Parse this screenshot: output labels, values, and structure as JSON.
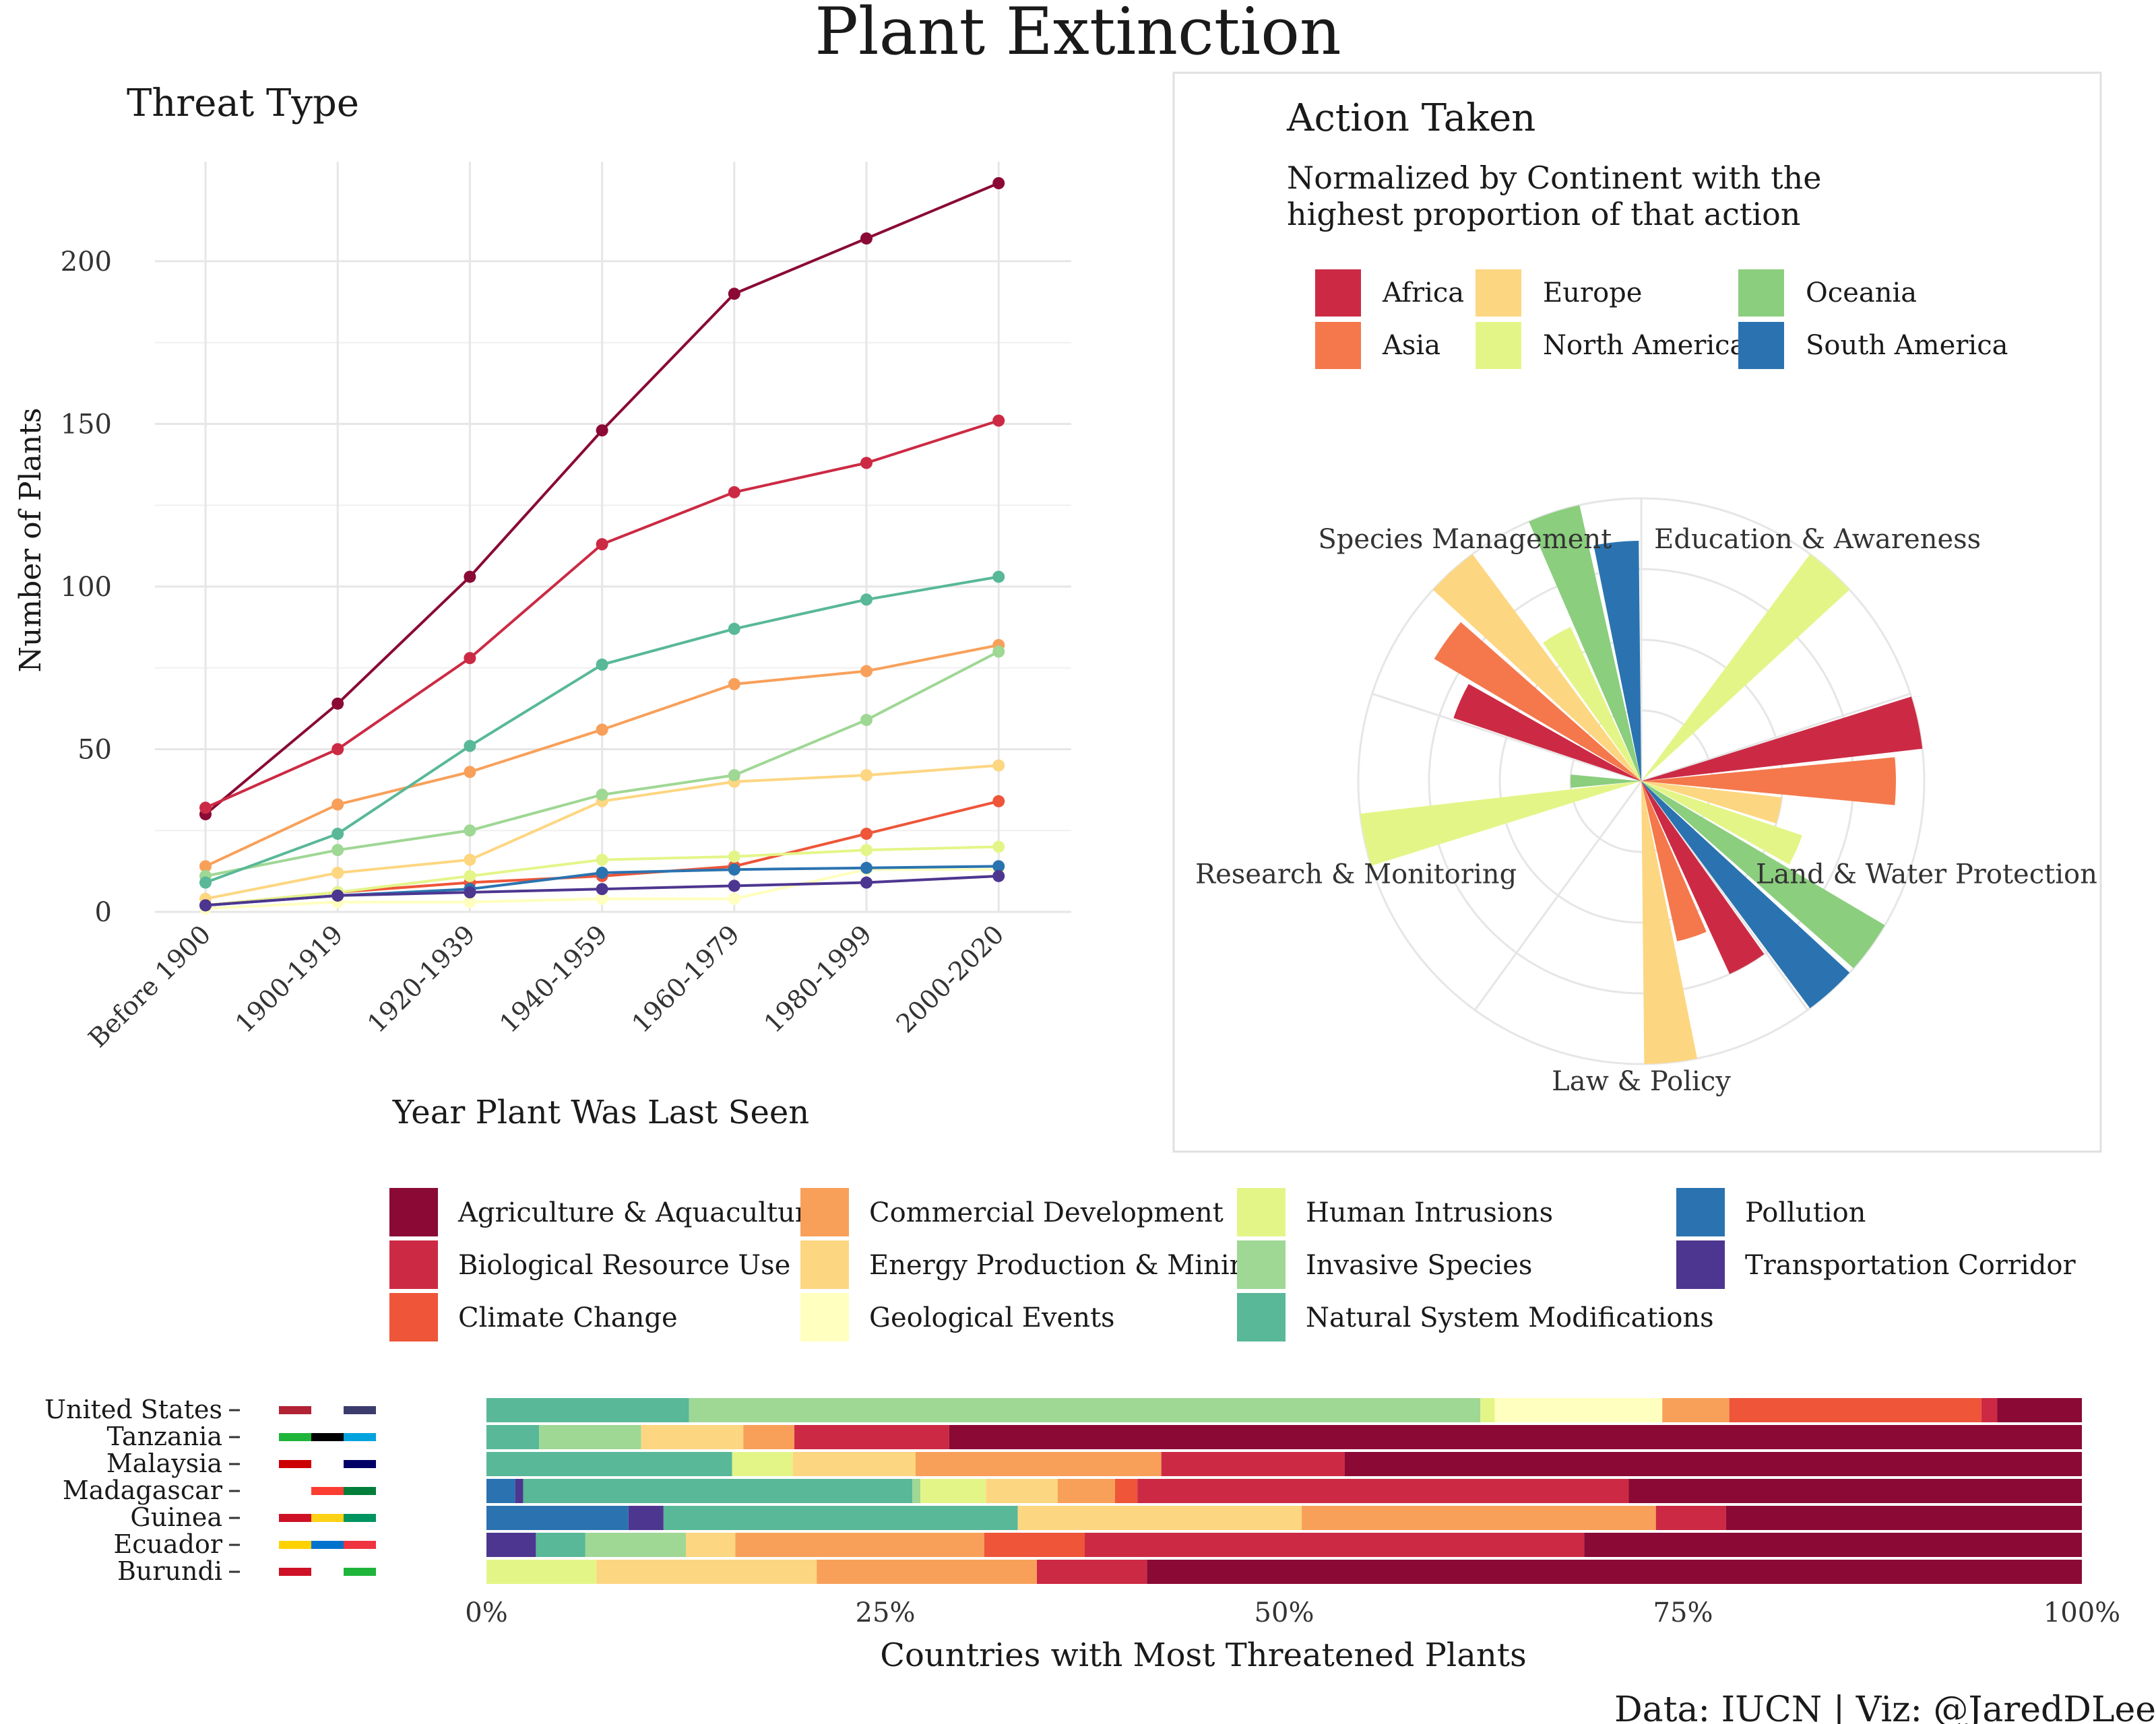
{
  "title": "Plant Extinction",
  "caption": "Data: IUCN | Viz: @JaredDLee",
  "chart_data": [
    {
      "id": "threat-type",
      "type": "line",
      "title": "Threat Type",
      "xlabel": "Year Plant Was Last Seen",
      "ylabel": "Number of Plants",
      "categories": [
        "Before 1900",
        "1900-1919",
        "1920-1939",
        "1940-1959",
        "1960-1979",
        "1980-1999",
        "2000-2020"
      ],
      "yticks": [
        0,
        50,
        100,
        150,
        200
      ],
      "ylim": [
        0,
        224
      ],
      "grid": true,
      "series": [
        {
          "name": "Agriculture & Aquaculture",
          "color": "#8a0a35",
          "values": [
            30,
            64,
            103,
            148,
            190,
            207,
            224
          ]
        },
        {
          "name": "Biological Resource Use",
          "color": "#cc2a44",
          "values": [
            32,
            50,
            78,
            113,
            129,
            138,
            151
          ]
        },
        {
          "name": "Climate Change",
          "color": "#ee5539",
          "values": [
            2,
            6,
            9,
            11,
            14,
            24,
            34
          ]
        },
        {
          "name": "Commercial Development",
          "color": "#f8a05a",
          "values": [
            14,
            33,
            43,
            56,
            70,
            74,
            82
          ]
        },
        {
          "name": "Energy Production & Mining",
          "color": "#fdd681",
          "values": [
            4,
            12,
            16,
            34,
            40,
            42,
            45
          ]
        },
        {
          "name": "Geological Events",
          "color": "#ffffbf",
          "values": [
            1,
            3,
            3,
            4,
            4,
            13,
            13
          ]
        },
        {
          "name": "Human Intrusions",
          "color": "#e4f588",
          "values": [
            2,
            6,
            11,
            16,
            17,
            19,
            20
          ]
        },
        {
          "name": "Invasive Species",
          "color": "#9fd794",
          "values": [
            11,
            19,
            25,
            36,
            42,
            59,
            80
          ]
        },
        {
          "name": "Natural System Modifications",
          "color": "#58b898",
          "values": [
            9,
            24,
            51,
            76,
            87,
            96,
            103
          ]
        },
        {
          "name": "Pollution",
          "color": "#2a73b0",
          "values": [
            2,
            5,
            7,
            12,
            13,
            13.5,
            14
          ]
        },
        {
          "name": "Transportation Corridor",
          "color": "#4d3690",
          "values": [
            2,
            5,
            6,
            7,
            8,
            9,
            11
          ]
        }
      ]
    },
    {
      "id": "action-taken",
      "type": "polar-bar",
      "title": "Action Taken",
      "subtitle": "Normalized by Continent with the highest proportion of that action",
      "subtitle_lines": [
        "Normalized by Continent with the",
        "highest proportion of that action"
      ],
      "legend_position": "top",
      "actions": [
        "Education & Awareness",
        "Land & Water Protection",
        "Law & Policy",
        "Research & Monitoring",
        "Species Management"
      ],
      "continents": [
        {
          "name": "Africa",
          "color": "#cc2a44"
        },
        {
          "name": "Asia",
          "color": "#f4784c"
        },
        {
          "name": "Europe",
          "color": "#fdd681"
        },
        {
          "name": "North America",
          "color": "#e4f588"
        },
        {
          "name": "Oceania",
          "color": "#8bce7e"
        },
        {
          "name": "South America",
          "color": "#2a73b0"
        }
      ],
      "values": {
        "Education & Awareness": [
          0,
          0,
          0,
          1.0,
          0,
          0
        ],
        "Land & Water Protection": [
          1.0,
          0.9,
          0.5,
          0.6,
          1.0,
          1.0
        ],
        "Law & Policy": [
          0.75,
          0.58,
          1.0,
          0,
          0,
          0
        ],
        "Research & Monitoring": [
          0,
          0,
          0,
          1.0,
          0.25,
          0
        ],
        "Species Management": [
          0.7,
          0.85,
          1.0,
          0.6,
          1.0,
          0.85
        ]
      },
      "rmax": 1.0
    },
    {
      "id": "countries",
      "type": "bar",
      "orientation": "horizontal",
      "stacked": "percent",
      "xlabel": "Countries with Most Threatened Plants",
      "xticks": [
        "0%",
        "25%",
        "50%",
        "75%",
        "100%"
      ],
      "categories": [
        "United States",
        "Tanzania",
        "Malaysia",
        "Madagascar",
        "Guinea",
        "Ecuador",
        "Burundi"
      ],
      "series_order": [
        "Pollution",
        "Transportation Corridor",
        "Natural System Modifications",
        "Invasive Species",
        "Human Intrusions",
        "Geological Events",
        "Energy Production & Mining",
        "Commercial Development",
        "Climate Change",
        "Biological Resource Use",
        "Agriculture & Aquaculture"
      ],
      "rows": [
        {
          "country": "United States",
          "shares": {
            "Natural System Modifications": 12.7,
            "Invasive Species": 49.6,
            "Human Intrusions": 0.9,
            "Geological Events": 10.5,
            "Commercial Development": 4.2,
            "Climate Change": 15.8,
            "Biological Resource Use": 1.0,
            "Agriculture & Aquaculture": 5.3
          }
        },
        {
          "country": "Tanzania",
          "shares": {
            "Natural System Modifications": 3.3,
            "Invasive Species": 6.4,
            "Energy Production & Mining": 6.4,
            "Commercial Development": 3.2,
            "Biological Resource Use": 9.7,
            "Agriculture & Aquaculture": 71.0
          }
        },
        {
          "country": "Malaysia",
          "shares": {
            "Natural System Modifications": 15.4,
            "Human Intrusions": 3.8,
            "Energy Production & Mining": 7.7,
            "Commercial Development": 15.4,
            "Biological Resource Use": 11.5,
            "Agriculture & Aquaculture": 46.2
          }
        },
        {
          "country": "Madagascar",
          "shares": {
            "Transportation Corridor": 0.5,
            "Pollution": 1.8,
            "Natural System Modifications": 24.4,
            "Invasive Species": 0.5,
            "Human Intrusions": 4.1,
            "Energy Production & Mining": 4.5,
            "Commercial Development": 3.6,
            "Climate Change": 1.4,
            "Biological Resource Use": 30.8,
            "Agriculture & Aquaculture": 28.4
          }
        },
        {
          "country": "Guinea",
          "shares": {
            "Transportation Corridor": 2.2,
            "Pollution": 8.9,
            "Natural System Modifications": 22.2,
            "Energy Production & Mining": 17.8,
            "Commercial Development": 22.2,
            "Biological Resource Use": 4.4,
            "Agriculture & Aquaculture": 22.3
          }
        },
        {
          "country": "Ecuador",
          "shares": {
            "Transportation Corridor": 3.1,
            "Natural System Modifications": 3.1,
            "Invasive Species": 6.3,
            "Energy Production & Mining": 3.1,
            "Commercial Development": 15.6,
            "Climate Change": 6.3,
            "Biological Resource Use": 31.3,
            "Agriculture & Aquaculture": 31.2
          }
        },
        {
          "country": "Burundi",
          "shares": {
            "Human Intrusions": 6.9,
            "Energy Production & Mining": 13.8,
            "Commercial Development": 13.8,
            "Biological Resource Use": 6.9,
            "Agriculture & Aquaculture": 58.6
          }
        }
      ]
    }
  ],
  "threat_legend": {
    "columns": [
      [
        "Agriculture & Aquaculture",
        "Biological Resource Use",
        "Climate Change"
      ],
      [
        "Commercial Development",
        "Energy Production & Mining",
        "Geological Events"
      ],
      [
        "Human Intrusions",
        "Invasive Species",
        "Natural System Modifications"
      ],
      [
        "Pollution",
        "Transportation Corridor"
      ]
    ]
  },
  "flags": {
    "United States": [
      "#b22234",
      "#ffffff",
      "#3c3b6e"
    ],
    "Tanzania": [
      "#1eb53a",
      "#000000",
      "#00a3dd"
    ],
    "Malaysia": [
      "#cc0001",
      "#ffffff",
      "#010066"
    ],
    "Madagascar": [
      "#ffffff",
      "#fc3d32",
      "#007e3a"
    ],
    "Guinea": [
      "#ce1126",
      "#fcd116",
      "#009460"
    ],
    "Ecuador": [
      "#ffd100",
      "#0072ce",
      "#ef3340"
    ],
    "Burundi": [
      "#ce1126",
      "#ffffff",
      "#1eb53a"
    ]
  }
}
